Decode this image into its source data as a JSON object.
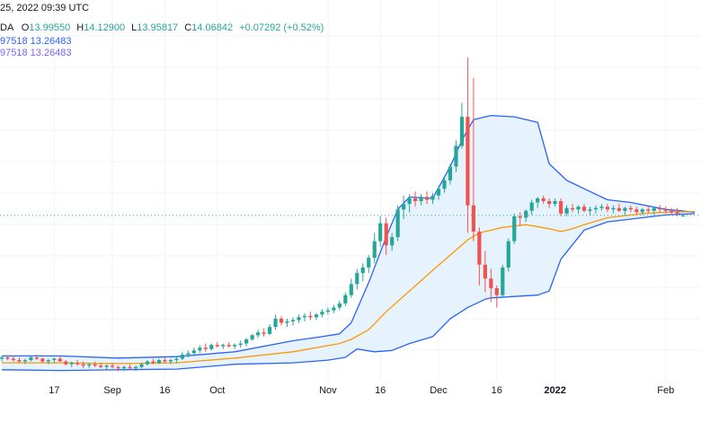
{
  "header": {
    "timestamp": "25, 2022 09:39 UTC",
    "symbol_suffix": "DA",
    "ohlc": {
      "o_label": "O",
      "o_value": "13.99550",
      "h_label": "H",
      "h_value": "14.12900",
      "l_label": "L",
      "l_value": "13.95817",
      "c_label": "C",
      "c_value": "14.06842",
      "change": "+0.07292 (+0.52%)"
    },
    "indicator_lines": [
      {
        "text": "97518  13.26483",
        "color": "#2962ff"
      },
      {
        "text": "97518  13.26483",
        "color": "#7b61ff"
      }
    ]
  },
  "colors": {
    "up": "#26a69a",
    "down": "#ef5350",
    "band_line": "#2962ff",
    "band_fill": "#e3f2fd",
    "basis": "#ff9800",
    "last_price_line": "#26a69a",
    "grid": "#f0f3fa",
    "text": "#131722"
  },
  "chart_data": {
    "type": "candlestick",
    "x_axis": {
      "ticks": [
        {
          "label": "17",
          "bold": false
        },
        {
          "label": "Sep",
          "bold": false
        },
        {
          "label": "16",
          "bold": false
        },
        {
          "label": "Oct",
          "bold": false
        },
        {
          "label": "Nov",
          "bold": false
        },
        {
          "label": "16",
          "bold": false
        },
        {
          "label": "Dec",
          "bold": false
        },
        {
          "label": "16",
          "bold": false
        },
        {
          "label": "2022",
          "bold": true
        },
        {
          "label": "Feb",
          "bold": false
        }
      ]
    },
    "y_range": [
      2.5,
      29.0
    ],
    "last_price": 14.07,
    "grid": true,
    "candles": [
      [
        3.7,
        3.9,
        3.5,
        3.8
      ],
      [
        3.8,
        3.9,
        3.6,
        3.7
      ],
      [
        3.7,
        3.9,
        3.5,
        3.6
      ],
      [
        3.6,
        3.8,
        3.4,
        3.5
      ],
      [
        3.5,
        3.7,
        3.3,
        3.6
      ],
      [
        3.6,
        3.9,
        3.5,
        3.8
      ],
      [
        3.8,
        4.0,
        3.6,
        3.7
      ],
      [
        3.7,
        3.8,
        3.4,
        3.5
      ],
      [
        3.5,
        3.7,
        3.3,
        3.6
      ],
      [
        3.6,
        3.8,
        3.4,
        3.7
      ],
      [
        3.7,
        3.9,
        3.5,
        3.5
      ],
      [
        3.5,
        3.6,
        3.2,
        3.3
      ],
      [
        3.3,
        3.5,
        3.1,
        3.4
      ],
      [
        3.4,
        3.6,
        3.2,
        3.3
      ],
      [
        3.3,
        3.5,
        3.0,
        3.2
      ],
      [
        3.2,
        3.4,
        3.0,
        3.3
      ],
      [
        3.3,
        3.5,
        3.1,
        3.2
      ],
      [
        3.2,
        3.4,
        3.0,
        3.1
      ],
      [
        3.1,
        3.3,
        2.9,
        3.2
      ],
      [
        3.2,
        3.4,
        3.0,
        3.1
      ],
      [
        3.1,
        3.2,
        2.8,
        3.0
      ],
      [
        3.0,
        3.2,
        2.8,
        3.1
      ],
      [
        3.1,
        3.3,
        2.9,
        3.0
      ],
      [
        3.0,
        3.2,
        2.8,
        3.1
      ],
      [
        3.1,
        3.4,
        3.0,
        3.3
      ],
      [
        3.3,
        3.6,
        3.2,
        3.5
      ],
      [
        3.5,
        3.7,
        3.3,
        3.4
      ],
      [
        3.4,
        3.7,
        3.3,
        3.6
      ],
      [
        3.6,
        3.8,
        3.4,
        3.5
      ],
      [
        3.5,
        3.7,
        3.3,
        3.6
      ],
      [
        3.6,
        3.9,
        3.4,
        3.7
      ],
      [
        3.7,
        4.2,
        3.6,
        4.0
      ],
      [
        4.0,
        4.3,
        3.8,
        4.1
      ],
      [
        4.1,
        4.5,
        3.9,
        4.3
      ],
      [
        4.3,
        4.7,
        4.1,
        4.5
      ],
      [
        4.5,
        4.8,
        4.2,
        4.4
      ],
      [
        4.4,
        4.8,
        4.3,
        4.7
      ],
      [
        4.7,
        4.9,
        4.5,
        4.6
      ],
      [
        4.6,
        4.8,
        4.4,
        4.7
      ],
      [
        4.7,
        4.9,
        4.5,
        4.6
      ],
      [
        4.6,
        4.8,
        4.4,
        4.7
      ],
      [
        4.7,
        5.0,
        4.5,
        4.8
      ],
      [
        4.8,
        5.2,
        4.6,
        5.1
      ],
      [
        5.1,
        5.5,
        5.0,
        5.4
      ],
      [
        5.4,
        5.8,
        5.2,
        5.6
      ],
      [
        5.6,
        5.9,
        5.3,
        5.5
      ],
      [
        5.5,
        6.2,
        5.4,
        6.0
      ],
      [
        6.0,
        6.9,
        5.8,
        6.6
      ],
      [
        6.6,
        6.8,
        6.1,
        6.3
      ],
      [
        6.3,
        6.6,
        6.0,
        6.4
      ],
      [
        6.4,
        6.7,
        6.1,
        6.5
      ],
      [
        6.5,
        6.9,
        6.3,
        6.7
      ],
      [
        6.7,
        7.0,
        6.4,
        6.8
      ],
      [
        6.8,
        7.1,
        6.5,
        6.7
      ],
      [
        6.7,
        7.0,
        6.5,
        6.9
      ],
      [
        6.9,
        7.3,
        6.7,
        7.1
      ],
      [
        7.1,
        7.4,
        6.9,
        7.2
      ],
      [
        7.2,
        7.6,
        7.0,
        7.4
      ],
      [
        7.4,
        7.9,
        7.2,
        7.7
      ],
      [
        7.7,
        8.5,
        7.5,
        8.3
      ],
      [
        8.3,
        9.5,
        8.1,
        9.1
      ],
      [
        9.1,
        10.2,
        8.7,
        9.9
      ],
      [
        9.9,
        10.6,
        9.3,
        10.3
      ],
      [
        10.3,
        11.2,
        9.9,
        11.0
      ],
      [
        11.0,
        12.8,
        10.6,
        12.2
      ],
      [
        12.2,
        14.0,
        11.8,
        13.5
      ],
      [
        13.5,
        13.9,
        11.2,
        11.9
      ],
      [
        11.9,
        12.8,
        11.5,
        12.5
      ],
      [
        12.5,
        14.8,
        12.2,
        14.5
      ],
      [
        14.5,
        15.5,
        13.8,
        14.9
      ],
      [
        14.9,
        15.6,
        14.3,
        15.3
      ],
      [
        15.3,
        15.8,
        14.7,
        15.1
      ],
      [
        15.1,
        15.6,
        14.8,
        15.4
      ],
      [
        15.4,
        15.8,
        14.9,
        15.2
      ],
      [
        15.2,
        15.7,
        14.9,
        15.5
      ],
      [
        15.5,
        16.2,
        15.2,
        16.0
      ],
      [
        16.0,
        16.9,
        15.7,
        16.6
      ],
      [
        16.6,
        17.8,
        16.3,
        17.6
      ],
      [
        17.6,
        19.5,
        17.2,
        19.1
      ],
      [
        19.1,
        22.2,
        18.9,
        21.2
      ],
      [
        21.2,
        25.5,
        12.8,
        14.8
      ],
      [
        14.8,
        24.0,
        12.2,
        12.9
      ],
      [
        12.9,
        13.2,
        9.0,
        10.5
      ],
      [
        10.5,
        11.5,
        8.5,
        9.5
      ],
      [
        9.5,
        10.2,
        7.8,
        8.8
      ],
      [
        8.8,
        9.0,
        7.4,
        8.3
      ],
      [
        8.3,
        10.5,
        8.1,
        10.3
      ],
      [
        10.3,
        12.4,
        10.0,
        12.2
      ],
      [
        12.2,
        14.2,
        12.0,
        14.0
      ],
      [
        14.0,
        14.3,
        13.3,
        13.9
      ],
      [
        13.9,
        14.5,
        13.6,
        14.4
      ],
      [
        14.4,
        15.2,
        14.1,
        15.0
      ],
      [
        15.0,
        15.4,
        14.6,
        15.3
      ],
      [
        15.3,
        15.5,
        14.9,
        15.1
      ],
      [
        15.1,
        15.3,
        14.6,
        14.9
      ],
      [
        14.9,
        15.3,
        14.7,
        15.1
      ],
      [
        15.1,
        15.3,
        14.0,
        14.2
      ],
      [
        14.2,
        14.8,
        14.0,
        14.6
      ],
      [
        14.6,
        14.9,
        14.3,
        14.5
      ],
      [
        14.5,
        14.8,
        14.2,
        14.7
      ],
      [
        14.7,
        14.9,
        14.3,
        14.4
      ],
      [
        14.4,
        14.7,
        14.1,
        14.5
      ],
      [
        14.5,
        14.8,
        14.2,
        14.6
      ],
      [
        14.6,
        14.9,
        14.4,
        14.7
      ],
      [
        14.7,
        14.9,
        14.3,
        14.5
      ],
      [
        14.5,
        14.8,
        14.2,
        14.6
      ],
      [
        14.6,
        14.9,
        14.3,
        14.4
      ],
      [
        14.4,
        14.7,
        14.1,
        14.6
      ],
      [
        14.6,
        14.8,
        14.3,
        14.5
      ],
      [
        14.5,
        14.7,
        14.2,
        14.3
      ],
      [
        14.3,
        14.6,
        14.1,
        14.5
      ],
      [
        14.5,
        14.8,
        14.2,
        14.4
      ],
      [
        14.4,
        14.7,
        14.1,
        14.6
      ],
      [
        14.6,
        14.8,
        14.3,
        14.5
      ],
      [
        14.5,
        14.7,
        14.2,
        14.4
      ],
      [
        14.4,
        14.6,
        14.1,
        14.3
      ],
      [
        14.3,
        14.6,
        14.0,
        14.2
      ],
      [
        14.0,
        14.13,
        13.96,
        14.07
      ]
    ],
    "band_upper": [
      [
        0,
        3.9
      ],
      [
        10,
        3.9
      ],
      [
        20,
        3.75
      ],
      [
        30,
        3.85
      ],
      [
        40,
        4.2
      ],
      [
        50,
        5.0
      ],
      [
        55,
        5.3
      ],
      [
        58,
        5.5
      ],
      [
        60,
        6.3
      ],
      [
        63,
        9.2
      ],
      [
        66,
        12.5
      ],
      [
        68,
        14.5
      ],
      [
        70,
        15.4
      ],
      [
        74,
        15.3
      ],
      [
        77,
        17.6
      ],
      [
        79,
        19.5
      ],
      [
        81,
        21.0
      ],
      [
        84,
        21.3
      ],
      [
        88,
        21.2
      ],
      [
        92,
        20.8
      ],
      [
        94,
        17.8
      ],
      [
        97,
        16.6
      ],
      [
        100,
        16.0
      ],
      [
        104,
        15.2
      ],
      [
        108,
        15.0
      ],
      [
        114,
        14.5
      ],
      [
        119,
        14.3
      ]
    ],
    "band_basis": [
      [
        0,
        3.4
      ],
      [
        10,
        3.4
      ],
      [
        20,
        3.35
      ],
      [
        30,
        3.4
      ],
      [
        40,
        3.75
      ],
      [
        50,
        4.2
      ],
      [
        58,
        4.8
      ],
      [
        60,
        5.1
      ],
      [
        63,
        5.8
      ],
      [
        66,
        7.1
      ],
      [
        70,
        8.6
      ],
      [
        74,
        10.1
      ],
      [
        77,
        11.2
      ],
      [
        80,
        12.3
      ],
      [
        82,
        12.8
      ],
      [
        86,
        13.2
      ],
      [
        90,
        13.4
      ],
      [
        94,
        13.1
      ],
      [
        96,
        12.9
      ],
      [
        98,
        13.1
      ],
      [
        100,
        13.4
      ],
      [
        104,
        13.9
      ],
      [
        110,
        14.2
      ],
      [
        114,
        14.3
      ],
      [
        119,
        14.35
      ]
    ],
    "band_lower": [
      [
        0,
        2.9
      ],
      [
        10,
        2.85
      ],
      [
        20,
        2.9
      ],
      [
        30,
        2.95
      ],
      [
        40,
        3.3
      ],
      [
        50,
        3.4
      ],
      [
        56,
        3.6
      ],
      [
        59,
        3.8
      ],
      [
        61,
        4.4
      ],
      [
        64,
        4.2
      ],
      [
        67,
        4.3
      ],
      [
        70,
        4.8
      ],
      [
        74,
        5.3
      ],
      [
        77,
        6.6
      ],
      [
        80,
        7.4
      ],
      [
        83,
        8.0
      ],
      [
        84,
        8.1
      ],
      [
        88,
        8.2
      ],
      [
        92,
        8.3
      ],
      [
        94,
        8.6
      ],
      [
        96,
        10.9
      ],
      [
        100,
        13.0
      ],
      [
        104,
        13.6
      ],
      [
        110,
        13.9
      ],
      [
        114,
        14.1
      ],
      [
        119,
        14.2
      ]
    ]
  }
}
